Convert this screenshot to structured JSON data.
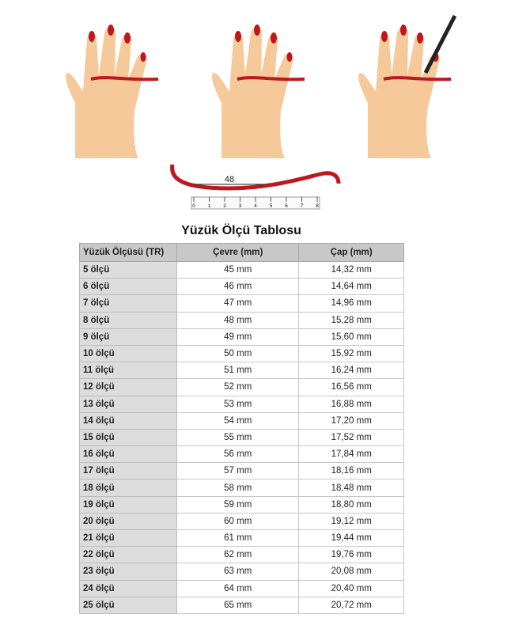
{
  "illustration": {
    "measure_label": "48",
    "ruler_ticks": [
      "0",
      "1",
      "2",
      "3",
      "4",
      "5",
      "6",
      "7",
      "8"
    ],
    "skin_color": "#f5c99a",
    "band_color": "#c0161c"
  },
  "title": "Yüzük Ölçü Tablosu",
  "table": {
    "headers": [
      "Yüzük Ölçüsü (TR)",
      "Çevre (mm)",
      "Çap (mm)"
    ],
    "rows": [
      [
        "5 ölçü",
        "45 mm",
        "14,32 mm"
      ],
      [
        "6 ölçü",
        "46 mm",
        "14,64 mm"
      ],
      [
        "7 ölçü",
        "47 mm",
        "14,96 mm"
      ],
      [
        "8 ölçü",
        "48 mm",
        "15,28 mm"
      ],
      [
        "9 ölçü",
        "49 mm",
        "15,60 mm"
      ],
      [
        "10 ölçü",
        "50 mm",
        "15,92 mm"
      ],
      [
        "11 ölçü",
        "51 mm",
        "16,24 mm"
      ],
      [
        "12 ölçü",
        "52 mm",
        "16,56 mm"
      ],
      [
        "13 ölçü",
        "53 mm",
        "16,88 mm"
      ],
      [
        "14 ölçü",
        "54 mm",
        "17,20 mm"
      ],
      [
        "15 ölçü",
        "55 mm",
        "17,52 mm"
      ],
      [
        "16 ölçü",
        "56 mm",
        "17,84 mm"
      ],
      [
        "17 ölçü",
        "57 mm",
        "18,16 mm"
      ],
      [
        "18 ölçü",
        "58 mm",
        "18,48 mm"
      ],
      [
        "19 ölçü",
        "59 mm",
        "18,80 mm"
      ],
      [
        "20 ölçü",
        "60 mm",
        "19,12 mm"
      ],
      [
        "21 ölçü",
        "61 mm",
        "19,44 mm"
      ],
      [
        "22 ölçü",
        "62 mm",
        "19,76 mm"
      ],
      [
        "23 ölçü",
        "63 mm",
        "20,08 mm"
      ],
      [
        "24 ölçü",
        "64 mm",
        "20,40 mm"
      ],
      [
        "25 ölçü",
        "65 mm",
        "20,72 mm"
      ]
    ]
  }
}
